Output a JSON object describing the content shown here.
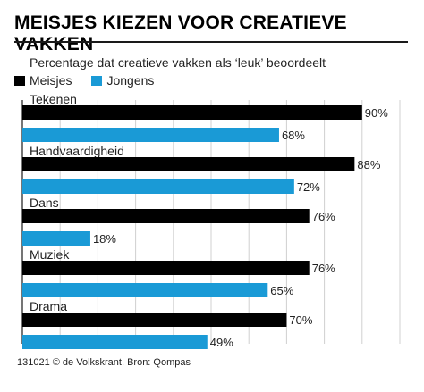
{
  "title": "MEISJES KIEZEN VOOR CREATIEVE VAKKEN",
  "footer": "131021 © de Volkskrant. Bron: Qompas",
  "colors": {
    "meisjes": "#000000",
    "jongens": "#1a9ad6",
    "grid": "#d0d0d0"
  },
  "chart_data": {
    "type": "bar",
    "orientation": "horizontal",
    "title": "MEISJES KIEZEN VOOR CREATIEVE VAKKEN",
    "subtitle": "Percentage dat creatieve vakken als ‘leuk’ beoordeelt",
    "categories": [
      "Tekenen",
      "Handvaardigheid",
      "Dans",
      "Muziek",
      "Drama"
    ],
    "series": [
      {
        "name": "Meisjes",
        "values": [
          90,
          88,
          76,
          76,
          70
        ],
        "labels": [
          "90%",
          "88%",
          "76%",
          "76%",
          "70%"
        ]
      },
      {
        "name": "Jongens",
        "values": [
          68,
          72,
          18,
          65,
          49
        ],
        "labels": [
          "68%",
          "72%",
          "18%",
          "65%",
          "49%"
        ]
      }
    ],
    "xlim": [
      0,
      100
    ],
    "grid": true,
    "legend": "top-left",
    "unit": "%"
  }
}
